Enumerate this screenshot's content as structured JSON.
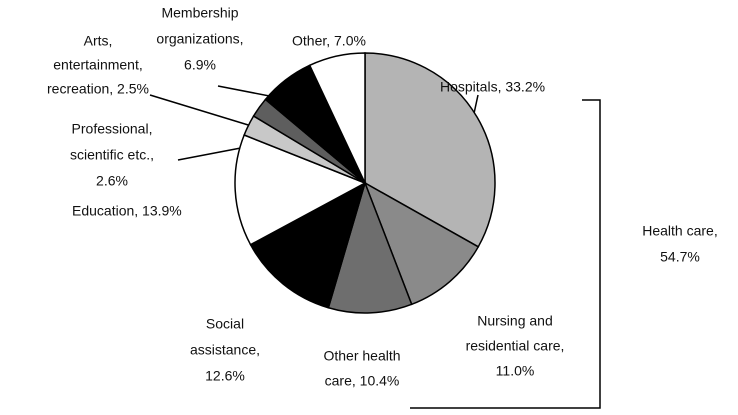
{
  "chart_data": {
    "type": "pie",
    "values": [
      33.2,
      11.0,
      10.4,
      12.6,
      13.9,
      2.6,
      2.5,
      6.9,
      7.0
    ],
    "value_labels": [
      [
        "Hospitals, 33.2%"
      ],
      [
        "Nursing and",
        "residential care,",
        "11.0%"
      ],
      [
        "Other health",
        "care, 10.4%"
      ],
      [
        "Social",
        "assistance,",
        "12.6%"
      ],
      [
        "Education, 13.9%"
      ],
      [
        "Professional,",
        "scientific etc.,",
        "2.6%"
      ],
      [
        "Arts,",
        "entertainment,",
        "recreation, 2.5%"
      ],
      [
        "Membership",
        "organizations,",
        "6.9%"
      ],
      [
        "Other, 7.0%"
      ]
    ],
    "colors": [
      "#b4b4b4",
      "#8a8a8a",
      "#6e6e6e",
      "#000000",
      "#ffffff",
      "#c8c8c8",
      "#5e5e5e",
      "#000000",
      "#ffffff"
    ],
    "annotation": [
      "Health care,",
      "54.7%"
    ]
  }
}
